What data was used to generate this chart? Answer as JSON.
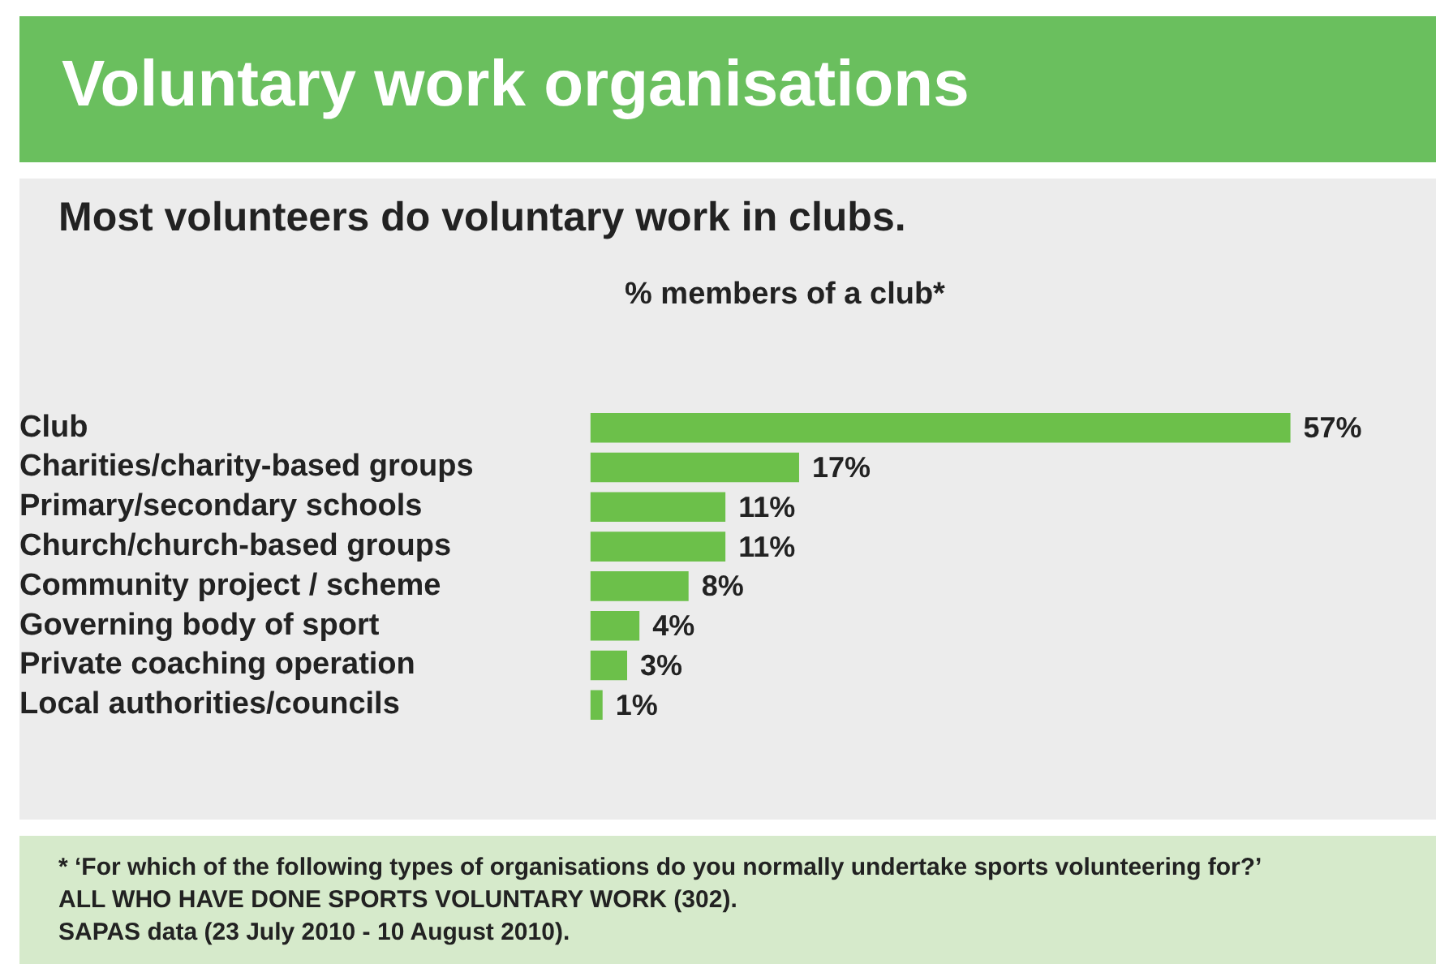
{
  "chart_data": {
    "type": "bar",
    "orientation": "horizontal",
    "title": "Voluntary work organisations",
    "subtitle": "Most volunteers do voluntary work in clubs.",
    "xlabel": "% members of a club*",
    "categories": [
      "Club",
      "Charities/charity-based groups",
      "Primary/secondary schools",
      "Church/church-based groups",
      "Community project / scheme",
      "Governing body of sport",
      "Private coaching operation",
      "Local authorities/councils"
    ],
    "values": [
      57,
      17,
      11,
      11,
      8,
      4,
      3,
      1
    ],
    "value_labels": [
      "57%",
      "17%",
      "11%",
      "11%",
      "8%",
      "4%",
      "3%",
      "1%"
    ],
    "color": "#6cc04a",
    "grid": false,
    "legend": false,
    "tick_labels": "y",
    "annotations": [
      "* ‘For which of the following types of organisations do you normally undertake sports volunteering for?’",
      "ALL WHO HAVE DONE SPORTS VOLUNTARY WORK (302).",
      "SAPAS data (23 July 2010 - 10 August 2010)."
    ]
  }
}
